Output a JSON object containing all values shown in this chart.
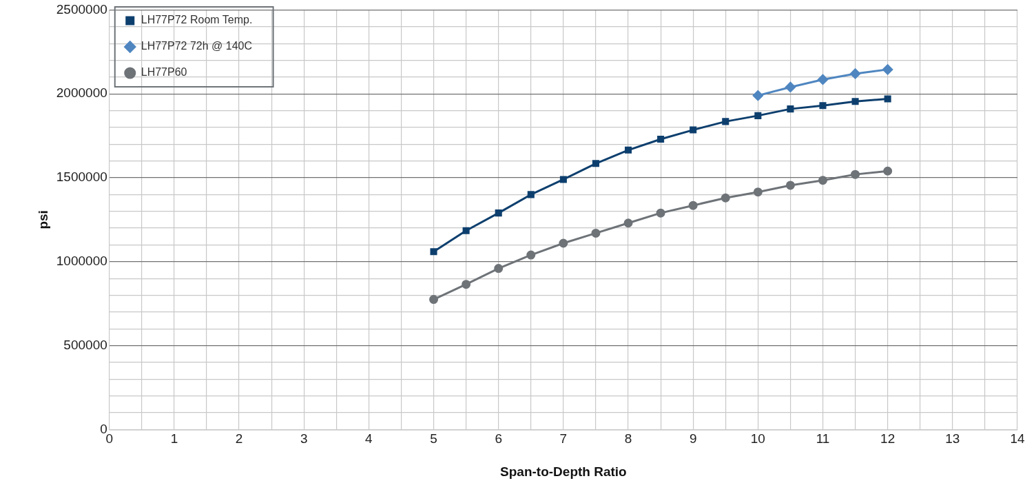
{
  "chart_data": {
    "type": "line",
    "xlabel": "Span-to-Depth Ratio",
    "ylabel": "psi",
    "xlim": [
      0,
      14
    ],
    "ylim": [
      0,
      2500000
    ],
    "xticks": [
      0,
      {
        "value": 0.5,
        "label": null
      },
      1,
      {
        "value": 1.5,
        "label": null
      },
      2,
      {
        "value": 2.5,
        "label": null
      },
      3,
      {
        "value": 3.5,
        "label": null
      },
      4,
      {
        "value": 4.5,
        "label": null
      },
      5,
      {
        "value": 5.5,
        "label": null
      },
      6,
      {
        "value": 6.5,
        "label": null
      },
      7,
      {
        "value": 7.5,
        "label": null
      },
      8,
      {
        "value": 8.5,
        "label": null
      },
      9,
      {
        "value": 9.5,
        "label": null
      },
      10,
      {
        "value": 10.5,
        "label": null
      },
      11,
      {
        "value": 11.5,
        "label": null
      },
      12,
      {
        "value": 12.5,
        "label": null
      },
      13,
      {
        "value": 13.5,
        "label": null
      },
      14
    ],
    "yticks": [
      0,
      {
        "value": 100000,
        "label": null
      },
      {
        "value": 200000,
        "label": null
      },
      {
        "value": 300000,
        "label": null
      },
      {
        "value": 400000,
        "label": null
      },
      500000,
      {
        "value": 600000,
        "label": null
      },
      {
        "value": 700000,
        "label": null
      },
      {
        "value": 800000,
        "label": null
      },
      {
        "value": 900000,
        "label": null
      },
      1000000,
      {
        "value": 1100000,
        "label": null
      },
      {
        "value": 1200000,
        "label": null
      },
      {
        "value": 1300000,
        "label": null
      },
      {
        "value": 1400000,
        "label": null
      },
      1500000,
      {
        "value": 1600000,
        "label": null
      },
      {
        "value": 1700000,
        "label": null
      },
      {
        "value": 1800000,
        "label": null
      },
      {
        "value": 1900000,
        "label": null
      },
      2000000,
      {
        "value": 2100000,
        "label": null
      },
      {
        "value": 2200000,
        "label": null
      },
      {
        "value": 2300000,
        "label": null
      },
      {
        "value": 2400000,
        "label": null
      },
      2500000
    ],
    "grid": true,
    "legend": "top left",
    "line_style": "solid",
    "series": [
      {
        "name": "LH77P72 Room Temp.",
        "color": "#0d3f6e",
        "marker": "square",
        "x": [
          5,
          5.5,
          6,
          6.5,
          7,
          7.5,
          8,
          8.5,
          9,
          9.5,
          10,
          10.5,
          11,
          11.5,
          12
        ],
        "values": [
          1060000,
          1185000,
          1290000,
          1400000,
          1490000,
          1585000,
          1665000,
          1730000,
          1785000,
          1835000,
          1870000,
          1910000,
          1930000,
          1955000,
          1970000
        ]
      },
      {
        "name": "LH77P72 72h @ 140C",
        "color": "#4f86c0",
        "marker": "diamond",
        "x": [
          10,
          10.5,
          11,
          11.5,
          12
        ],
        "values": [
          1990000,
          2040000,
          2085000,
          2120000,
          2145000
        ]
      },
      {
        "name": "LH77P60",
        "color": "#6e7378",
        "marker": "circle",
        "x": [
          5,
          5.5,
          6,
          6.5,
          7,
          7.5,
          8,
          8.5,
          9,
          9.5,
          10,
          10.5,
          11,
          11.5,
          12
        ],
        "values": [
          775000,
          865000,
          960000,
          1040000,
          1110000,
          1170000,
          1230000,
          1290000,
          1335000,
          1380000,
          1415000,
          1455000,
          1485000,
          1520000,
          1540000
        ]
      }
    ]
  }
}
